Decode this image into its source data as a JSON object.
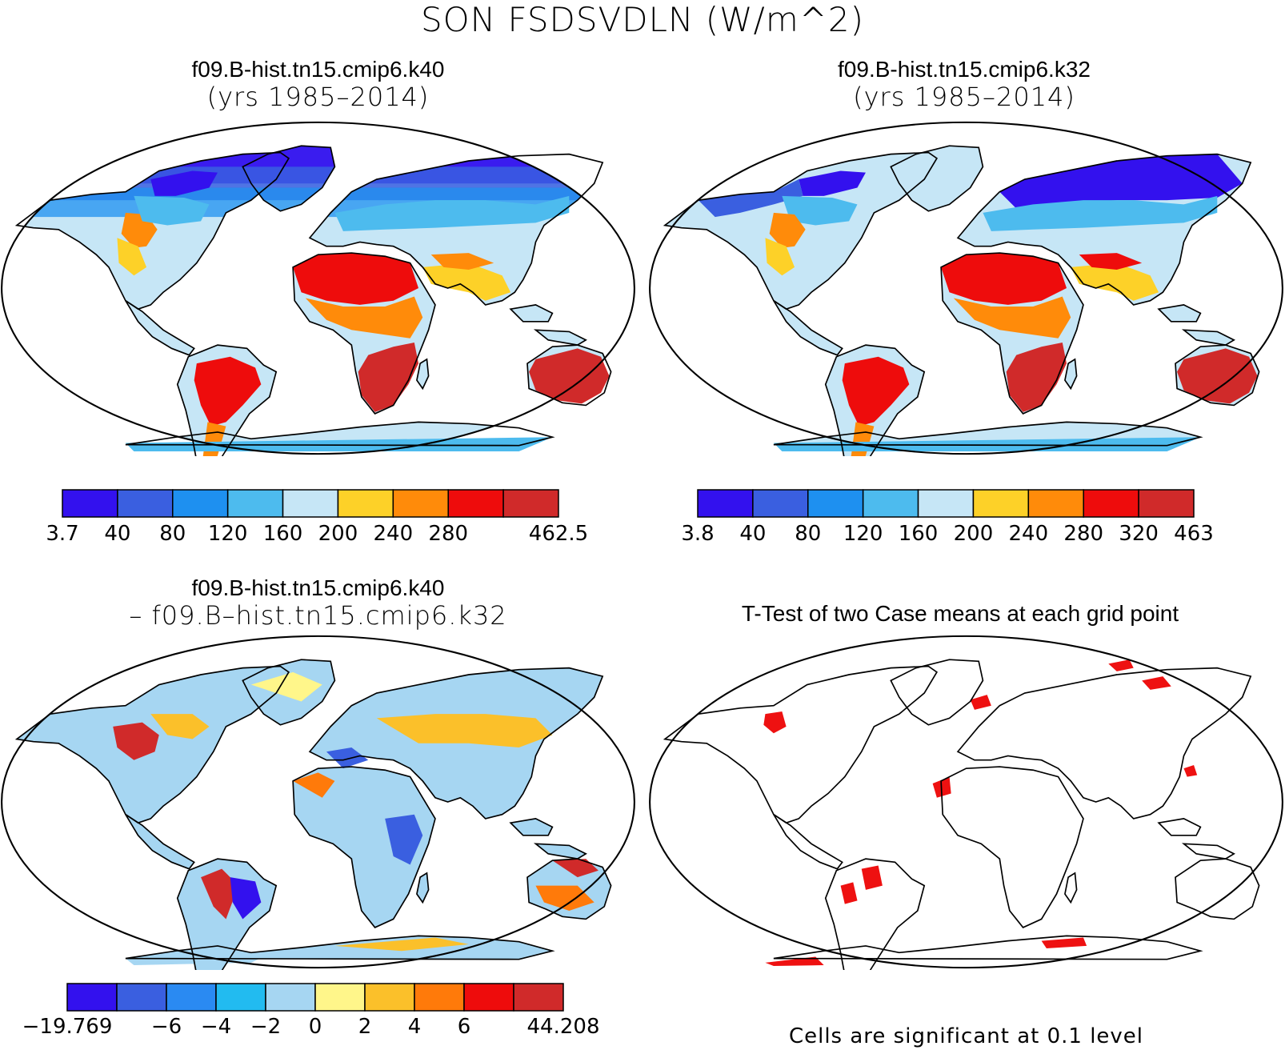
{
  "figure": {
    "title": "SON FSDSVDLN (W/m^2)"
  },
  "panels": {
    "case1": {
      "title_line1": "f09.B-hist.tn15.cmip6.k40",
      "title_line2": "(yrs 1985–2014)"
    },
    "case2": {
      "title_line1": "f09.B-hist.tn15.cmip6.k32",
      "title_line2": "(yrs 1985–2014)"
    },
    "diff": {
      "title_line1": "f09.B-hist.tn15.cmip6.k40",
      "title_line2": "– f09.B–hist.tn15.cmip6.k32"
    },
    "ttest": {
      "title_line1": "T-Test of two Case means at each grid point",
      "note": "Cells are significant at 0.1 level"
    }
  },
  "colorbars": {
    "case1": {
      "colors": [
        "#3311ee",
        "#3a5fe0",
        "#1e90f0",
        "#4dbbee",
        "#c6e6f6",
        "#fdd128",
        "#ff8b0a",
        "#ee0c0c",
        "#d02a2a"
      ],
      "labels": [
        "3.7",
        "40",
        "80",
        "120",
        "160",
        "200",
        "240",
        "280",
        "462.5"
      ],
      "label_positions": [
        0,
        1,
        2,
        3,
        4,
        5,
        6,
        7,
        9
      ]
    },
    "case2": {
      "colors": [
        "#3311ee",
        "#3a5fe0",
        "#1e90f0",
        "#4dbbee",
        "#c6e6f6",
        "#fdd128",
        "#ff8b0a",
        "#ee0c0c",
        "#d02a2a"
      ],
      "labels": [
        "3.8",
        "40",
        "80",
        "120",
        "160",
        "200",
        "240",
        "280",
        "320",
        "463"
      ],
      "label_positions": [
        0,
        1,
        2,
        3,
        4,
        5,
        6,
        7,
        8,
        9
      ]
    },
    "diff": {
      "colors": [
        "#3311ee",
        "#3a5fe0",
        "#2a8af2",
        "#22bbf0",
        "#a6d6f2",
        "#fff68a",
        "#fbc02a",
        "#ff7a0a",
        "#ee0c0c",
        "#d02a2a"
      ],
      "labels": [
        "−19.769",
        "−6",
        "−4",
        "−2",
        "0",
        "2",
        "4",
        "6",
        "44.208"
      ],
      "label_positions": [
        0,
        2,
        3,
        4,
        5,
        6,
        7,
        8,
        10
      ]
    }
  },
  "significance_color": "#ee1111"
}
